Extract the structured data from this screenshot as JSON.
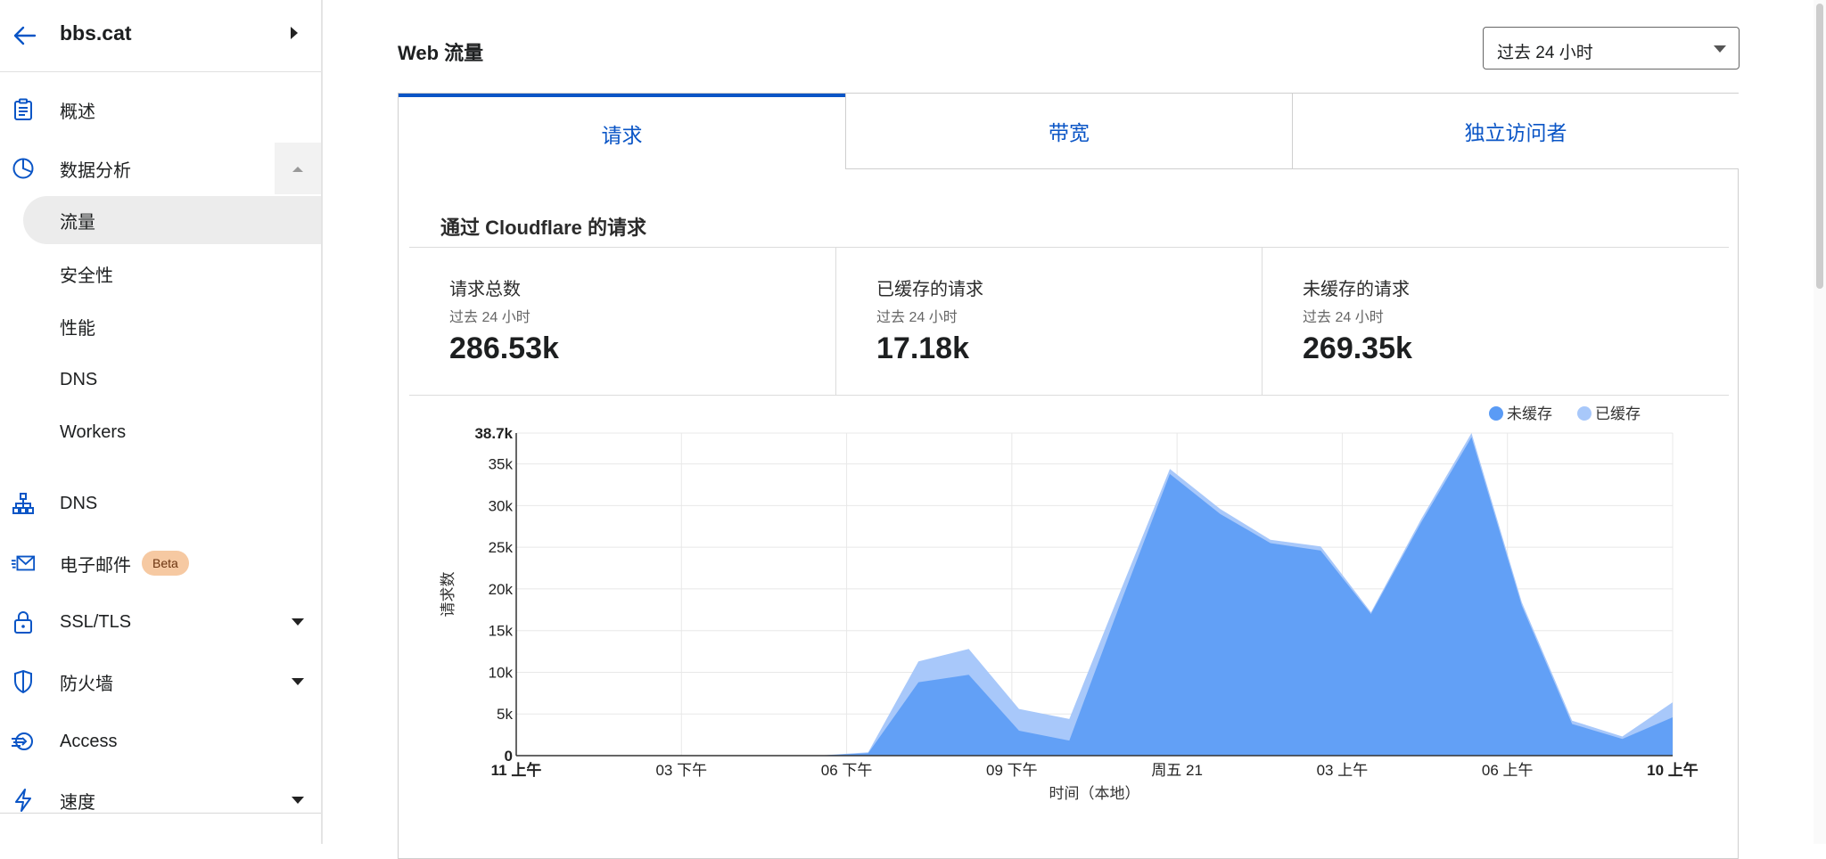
{
  "sidebar": {
    "site_name": "bbs.cat",
    "items": {
      "overview": "概述",
      "analytics": "数据分析",
      "dns": "DNS",
      "email": "电子邮件",
      "email_badge": "Beta",
      "ssl": "SSL/TLS",
      "firewall": "防火墙",
      "access": "Access",
      "speed": "速度"
    },
    "analytics_sub": {
      "traffic": "流量",
      "security": "安全性",
      "performance": "性能",
      "dns": "DNS",
      "workers": "Workers"
    }
  },
  "main": {
    "title": "Web 流量",
    "time_range": "过去 24 小时",
    "tabs": {
      "requests": "请求",
      "bandwidth": "带宽",
      "visitors": "独立访问者"
    },
    "section_title": "通过 Cloudflare 的请求",
    "stats": [
      {
        "label": "请求总数",
        "sub": "过去 24 小时",
        "value": "286.53k"
      },
      {
        "label": "已缓存的请求",
        "sub": "过去 24 小时",
        "value": "17.18k"
      },
      {
        "label": "未缓存的请求",
        "sub": "过去 24 小时",
        "value": "269.35k"
      }
    ]
  },
  "chart_data": {
    "type": "area",
    "title": "",
    "xlabel": "时间（本地）",
    "ylabel": "请求数",
    "ylim": [
      0,
      38.7
    ],
    "y_unit": "k",
    "y_ticks": [
      "0",
      "5k",
      "10k",
      "15k",
      "20k",
      "25k",
      "30k",
      "35k",
      "38.7k"
    ],
    "x_ticks": [
      "11 上午",
      "03 下午",
      "06 下午",
      "09 下午",
      "周五 21",
      "03 上午",
      "06 上午",
      "10 上午"
    ],
    "x": [
      0,
      1,
      2,
      3,
      4,
      5,
      6,
      7,
      8,
      9,
      10,
      11,
      12,
      13,
      14,
      15,
      16,
      17,
      18,
      19,
      20,
      21,
      22,
      23
    ],
    "legend": [
      "未缓存",
      "已缓存"
    ],
    "legend_position": "top-right",
    "colors": {
      "uncached": "#5a9bf5",
      "cached": "#a8c8fa"
    },
    "series": [
      {
        "name": "未缓存",
        "values": [
          0,
          0,
          0,
          0,
          0,
          0,
          0,
          0.3,
          8.8,
          9.7,
          3.0,
          1.8,
          18.0,
          33.8,
          29.0,
          25.5,
          24.6,
          17.0,
          28.0,
          38.2,
          18.0,
          3.8,
          2.0,
          4.6
        ]
      },
      {
        "name": "已缓存",
        "values": [
          0,
          0,
          0,
          0,
          0,
          0,
          0,
          0.1,
          2.5,
          3.1,
          2.6,
          2.6,
          1.5,
          0.6,
          0.6,
          0.4,
          0.5,
          0.2,
          0.4,
          0.5,
          0.4,
          0.4,
          0.3,
          1.8
        ]
      }
    ]
  }
}
